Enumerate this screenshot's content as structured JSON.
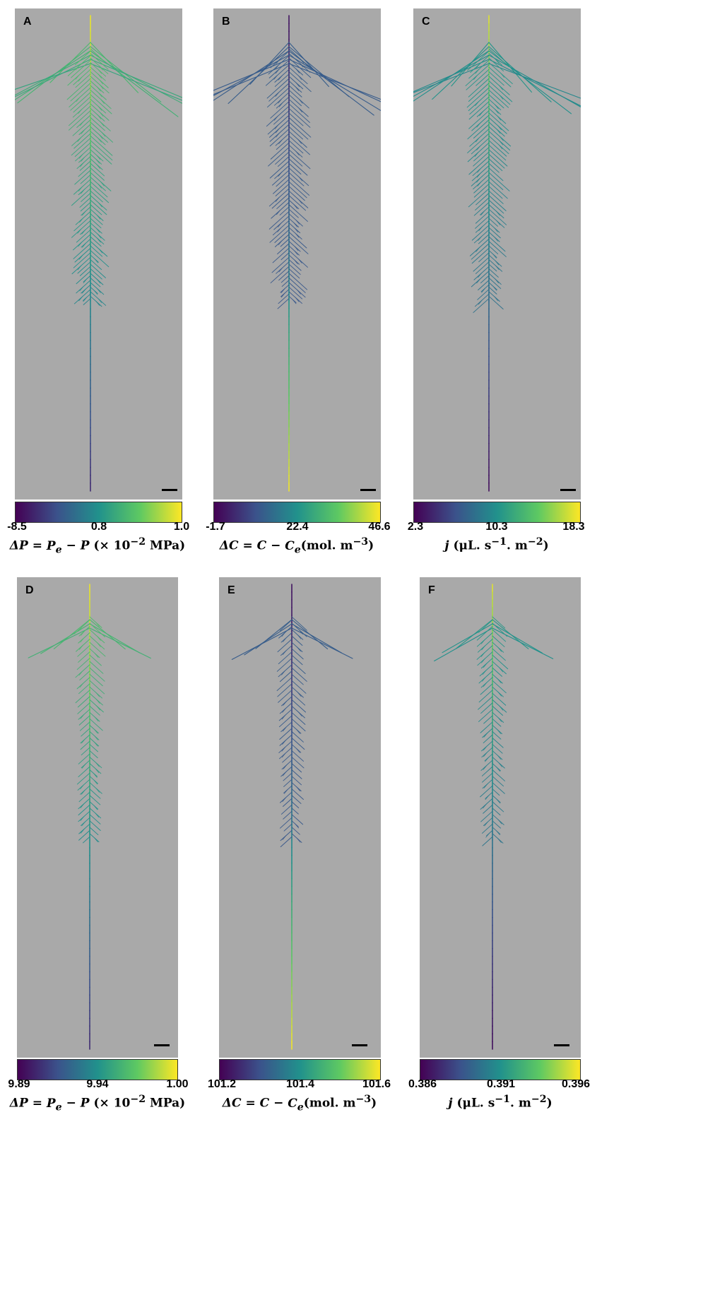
{
  "colormap": [
    "#440154",
    "#3b528b",
    "#21918c",
    "#5ec962",
    "#fde725"
  ],
  "background": "#a9a9a9",
  "panels": [
    {
      "label": "A",
      "ticks": [
        "-8.5",
        "0.8",
        "1.0"
      ],
      "colorbar_title": "ΔP = Pe − P (× 10−2 MPa)",
      "scheme": "pressure"
    },
    {
      "label": "B",
      "ticks": [
        "-1.7",
        "22.4",
        "46.6"
      ],
      "colorbar_title": "ΔC = C − Ce(mol. m−3)",
      "scheme": "conc"
    },
    {
      "label": "C",
      "ticks": [
        "2.3",
        "10.3",
        "18.3"
      ],
      "colorbar_title": "j (μL. s−1. m−2)",
      "scheme": "flux"
    },
    {
      "label": "D",
      "ticks": [
        "9.89",
        "9.94",
        "1.00"
      ],
      "colorbar_title": "ΔP = Pe − P (× 10−2 MPa)",
      "scheme": "pressure"
    },
    {
      "label": "E",
      "ticks": [
        "101.2",
        "101.4",
        "101.6"
      ],
      "colorbar_title": "ΔC = C − Ce(mol. m−3)",
      "scheme": "conc"
    },
    {
      "label": "F",
      "ticks": [
        "0.386",
        "0.391",
        "0.396"
      ],
      "colorbar_title": "j (μL. s−1. m−2)",
      "scheme": "flux"
    }
  ]
}
